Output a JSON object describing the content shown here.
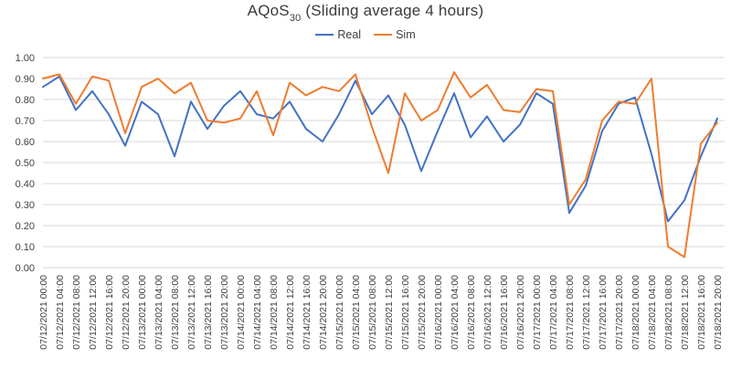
{
  "title": {
    "prefix": "AQoS",
    "subscript": "30",
    "suffix": " (Sliding average 4 hours)"
  },
  "legend": [
    {
      "label": "Real",
      "color": "#4472C4"
    },
    {
      "label": "Sim",
      "color": "#ED7D31"
    }
  ],
  "colors": {
    "real": "#4472C4",
    "sim": "#ED7D31",
    "gridline": "#D9D9D9",
    "tick_label": "#404040",
    "title": "#3a3a3a"
  },
  "chart_data": {
    "type": "line",
    "title": "AQoS30 (Sliding average 4 hours)",
    "xlabel": "",
    "ylabel": "",
    "ylim": [
      0.0,
      1.0
    ],
    "ytick_step": 0.1,
    "ytick_labels": [
      "0.00",
      "0.10",
      "0.20",
      "0.30",
      "0.40",
      "0.50",
      "0.60",
      "0.70",
      "0.80",
      "0.90",
      "1.00"
    ],
    "grid": "horizontal",
    "legend_position": "top",
    "x": [
      "07/12/2021 00:00",
      "07/12/2021 04:00",
      "07/12/2021 08:00",
      "07/12/2021 12:00",
      "07/12/2021 16:00",
      "07/12/2021 20:00",
      "07/13/2021 00:00",
      "07/13/2021 04:00",
      "07/13/2021 08:00",
      "07/13/2021 12:00",
      "07/13/2021 16:00",
      "07/13/2021 20:00",
      "07/14/2021 00:00",
      "07/14/2021 04:00",
      "07/14/2021 08:00",
      "07/14/2021 12:00",
      "07/14/2021 16:00",
      "07/14/2021 20:00",
      "07/15/2021 00:00",
      "07/15/2021 04:00",
      "07/15/2021 08:00",
      "07/15/2021 12:00",
      "07/15/2021 16:00",
      "07/15/2021 20:00",
      "07/16/2021 00:00",
      "07/16/2021 04:00",
      "07/16/2021 08:00",
      "07/16/2021 12:00",
      "07/16/2021 16:00",
      "07/16/2021 20:00",
      "07/17/2021 00:00",
      "07/17/2021 04:00",
      "07/17/2021 08:00",
      "07/17/2021 12:00",
      "07/17/2021 16:00",
      "07/17/2021 20:00",
      "07/18/2021 00:00",
      "07/18/2021 04:00",
      "07/18/2021 08:00",
      "07/18/2021 12:00",
      "07/18/2021 16:00",
      "07/18/2021 20:00"
    ],
    "series": [
      {
        "name": "Real",
        "color": "#4472C4",
        "values": [
          0.86,
          0.91,
          0.75,
          0.84,
          0.73,
          0.58,
          0.79,
          0.73,
          0.53,
          0.79,
          0.66,
          0.77,
          0.84,
          0.73,
          0.71,
          0.79,
          0.66,
          0.6,
          0.73,
          0.89,
          0.73,
          0.82,
          0.68,
          0.46,
          0.65,
          0.83,
          0.62,
          0.72,
          0.6,
          0.68,
          0.83,
          0.78,
          0.26,
          0.39,
          0.65,
          0.78,
          0.81,
          0.54,
          0.22,
          0.32,
          0.53,
          0.71
        ]
      },
      {
        "name": "Sim",
        "color": "#ED7D31",
        "values": [
          0.9,
          0.92,
          0.78,
          0.91,
          0.89,
          0.64,
          0.86,
          0.9,
          0.83,
          0.88,
          0.7,
          0.69,
          0.71,
          0.84,
          0.63,
          0.88,
          0.82,
          0.86,
          0.84,
          0.92,
          0.67,
          0.45,
          0.83,
          0.7,
          0.75,
          0.93,
          0.81,
          0.87,
          0.75,
          0.74,
          0.85,
          0.84,
          0.3,
          0.42,
          0.7,
          0.79,
          0.78,
          0.9,
          0.1,
          0.05,
          0.59,
          0.69
        ]
      }
    ]
  }
}
